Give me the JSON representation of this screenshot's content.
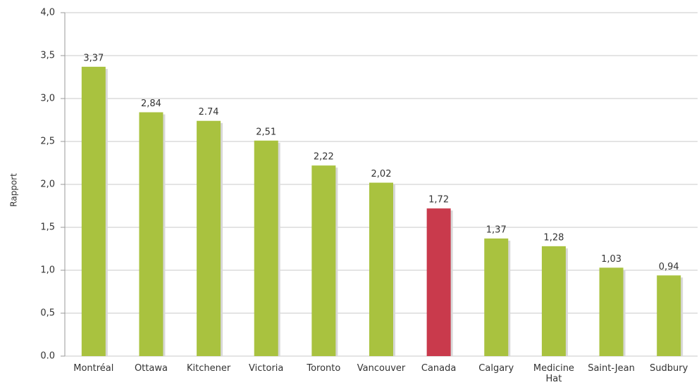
{
  "chart_data": {
    "type": "bar",
    "y_label": "Rapport",
    "categories": [
      "Montréal",
      "Ottawa",
      "Kitchener",
      "Victoria",
      "Toronto",
      "Vancouver",
      "Canada",
      "Calgary",
      "Medicine Hat",
      "Saint-Jean",
      "Sudbury"
    ],
    "values": [
      3.37,
      2.84,
      2.74,
      2.51,
      2.22,
      2.02,
      1.72,
      1.37,
      1.28,
      1.03,
      0.94
    ],
    "value_labels": [
      "3,37",
      "2,84",
      "2.74",
      "2,51",
      "2,22",
      "2,02",
      "1,72",
      "1,37",
      "1,28",
      "1,03",
      "0,94"
    ],
    "colors": [
      "#a9c23f",
      "#a9c23f",
      "#a9c23f",
      "#a9c23f",
      "#a9c23f",
      "#a9c23f",
      "#c93a4c",
      "#a9c23f",
      "#a9c23f",
      "#a9c23f",
      "#a9c23f"
    ],
    "ylim": [
      0,
      4
    ],
    "yticks": [
      {
        "value": 0,
        "label": "0.0"
      },
      {
        "value": 0.5,
        "label": "0,5"
      },
      {
        "value": 1,
        "label": "1,0"
      },
      {
        "value": 1.5,
        "label": "1,5"
      },
      {
        "value": 2,
        "label": "2,0"
      },
      {
        "value": 2.5,
        "label": "2,5"
      },
      {
        "value": 3,
        "label": "3,0"
      },
      {
        "value": 3.5,
        "label": "3,5"
      },
      {
        "value": 4,
        "label": "4,0"
      }
    ],
    "grid": true
  }
}
